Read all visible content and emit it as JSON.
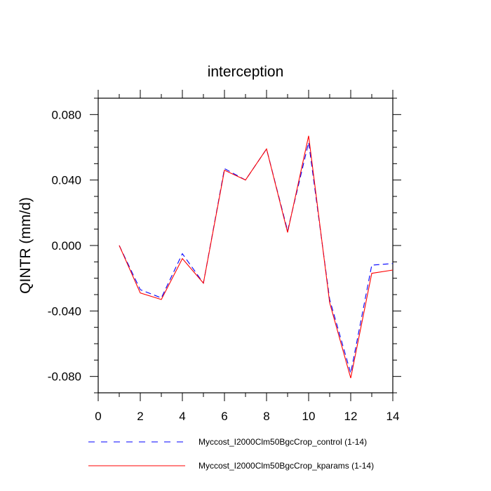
{
  "chart_data": {
    "type": "line",
    "title": "interception",
    "xlabel": "",
    "ylabel": "QINTR  (mm/d)",
    "xlim": [
      0,
      14
    ],
    "ylim": [
      -0.09,
      0.09
    ],
    "x_ticks": [
      0,
      2,
      4,
      6,
      8,
      10,
      12,
      14
    ],
    "x_tick_labels": [
      "0",
      "2",
      "4",
      "6",
      "8",
      "10",
      "12",
      "14"
    ],
    "y_ticks": [
      0.08,
      0.04,
      0.0,
      -0.04,
      -0.08
    ],
    "y_tick_labels": [
      "0.080",
      "0.040",
      "0.000",
      "-0.040",
      "-0.080"
    ],
    "x": [
      1,
      2,
      3,
      4,
      5,
      6,
      7,
      8,
      9,
      10,
      11,
      12,
      13,
      14
    ],
    "series": [
      {
        "name": "Myccost_I2000Clm50BgcCrop_control (1-14)",
        "color": "#0000ff",
        "dash": "dashed",
        "values": [
          0.0,
          -0.027,
          -0.032,
          -0.005,
          -0.023,
          0.047,
          0.04,
          0.059,
          0.009,
          0.063,
          -0.033,
          -0.078,
          -0.012,
          -0.011
        ]
      },
      {
        "name": "Myccost_I2000Clm50BgcCrop_kparams (1-14)",
        "color": "#ff0000",
        "dash": "solid",
        "values": [
          0.0,
          -0.029,
          -0.033,
          -0.008,
          -0.023,
          0.046,
          0.04,
          0.059,
          0.008,
          0.067,
          -0.035,
          -0.081,
          -0.017,
          -0.015
        ]
      }
    ],
    "grid": false,
    "legend_position": "bottom"
  }
}
